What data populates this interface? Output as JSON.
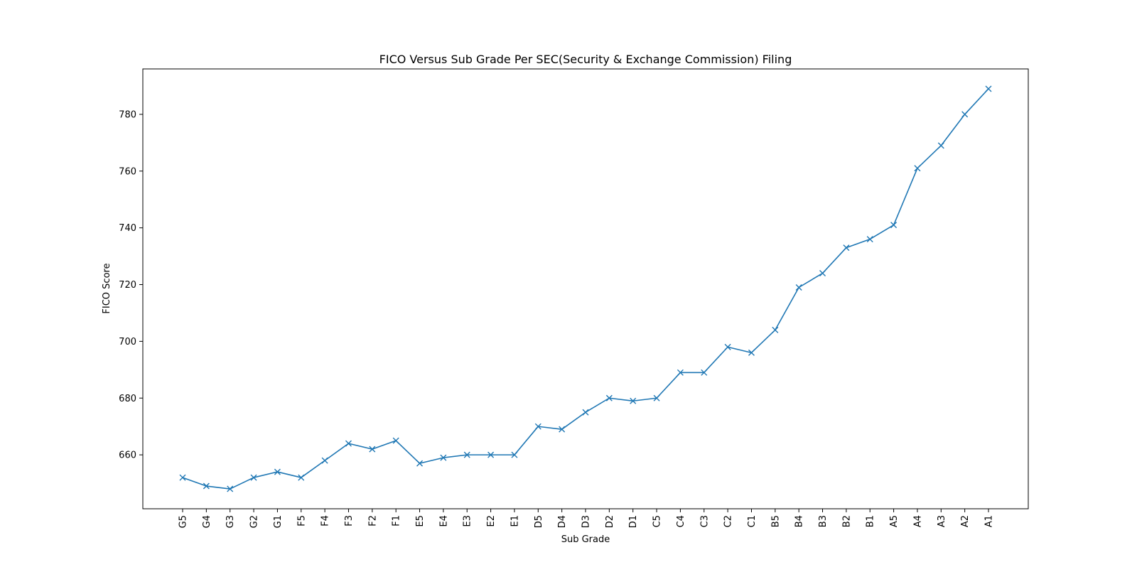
{
  "chart_data": {
    "type": "line",
    "title": "FICO Versus Sub Grade Per SEC(Security & Exchange Commission) Filing",
    "xlabel": "Sub Grade",
    "ylabel": "FICO Score",
    "categories": [
      "G5",
      "G4",
      "G3",
      "G2",
      "G1",
      "F5",
      "F4",
      "F3",
      "F2",
      "F1",
      "E5",
      "E4",
      "E3",
      "E2",
      "E1",
      "D5",
      "D4",
      "D3",
      "D2",
      "D1",
      "C5",
      "C4",
      "C3",
      "C2",
      "C1",
      "B5",
      "B4",
      "B3",
      "B2",
      "B1",
      "A5",
      "A4",
      "A3",
      "A2",
      "A1"
    ],
    "values": [
      652,
      649,
      648,
      652,
      654,
      652,
      658,
      664,
      662,
      665,
      657,
      659,
      660,
      660,
      660,
      670,
      669,
      675,
      680,
      679,
      680,
      689,
      689,
      698,
      696,
      704,
      719,
      724,
      733,
      736,
      741,
      761,
      769,
      780,
      789
    ],
    "ylim": [
      641,
      796
    ],
    "yticks": [
      660,
      680,
      700,
      720,
      740,
      760,
      780
    ],
    "grid": false,
    "marker": "x",
    "line_color": "#1f77b4"
  }
}
